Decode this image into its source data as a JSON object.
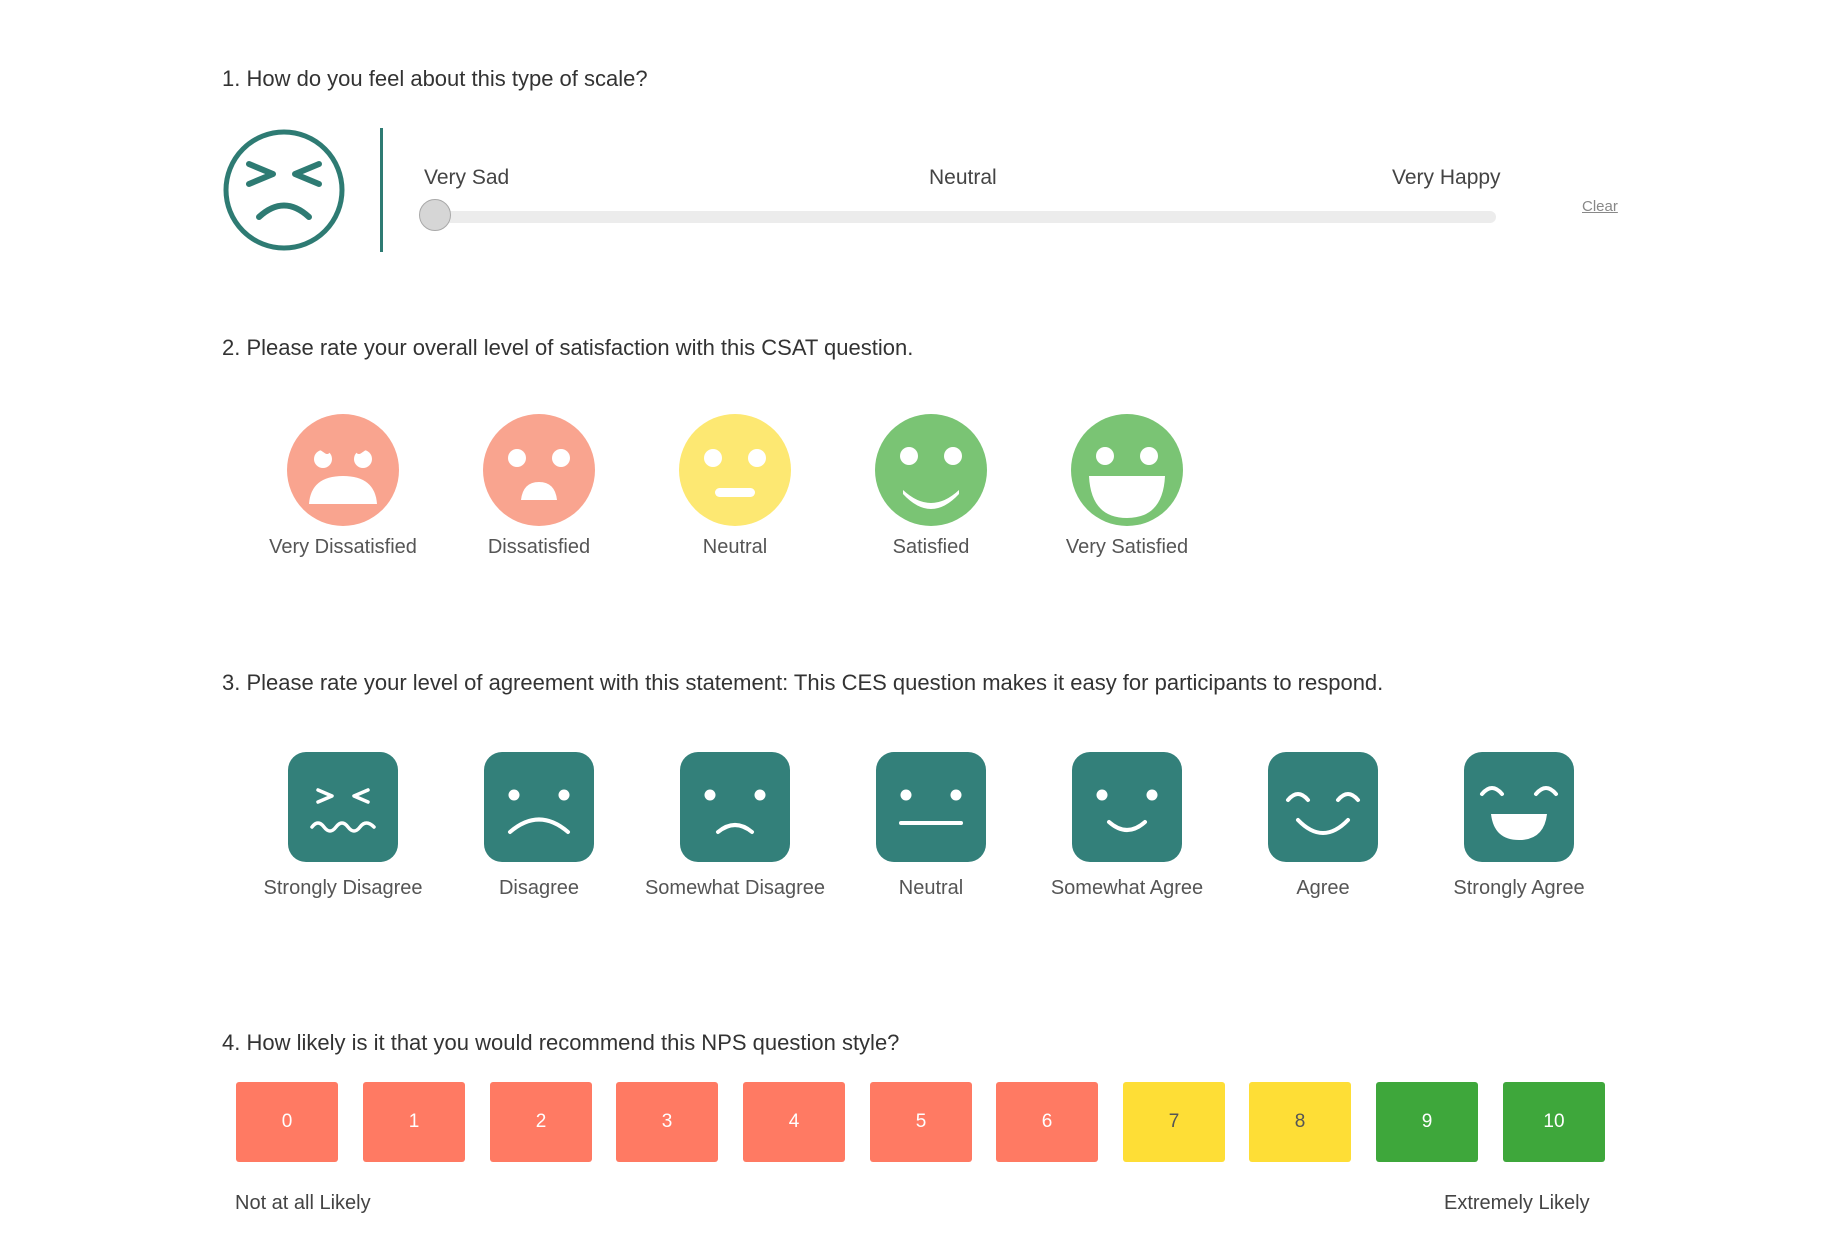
{
  "colors": {
    "teal": "#2e7b73",
    "teal_fill": "#33807a",
    "salmon_face": "#f9a48f",
    "yellow_face": "#fde872",
    "green_face": "#7ac474",
    "nps_red": "#ff7a63",
    "nps_yellow": "#fede36",
    "nps_green": "#3ea73b"
  },
  "q1": {
    "title": "1. How do you feel about this type of scale?",
    "face_icon": "scrunched-face-outline-icon",
    "labels": {
      "left": "Very Sad",
      "middle": "Neutral",
      "right": "Very Happy"
    },
    "slider_value": 0,
    "clear": "Clear"
  },
  "q2": {
    "title": "2. Please rate your overall level of satisfaction with this CSAT question.",
    "options": [
      {
        "label": "Very Dissatisfied",
        "icon": "angry-face-icon"
      },
      {
        "label": "Dissatisfied",
        "icon": "sad-face-icon"
      },
      {
        "label": "Neutral",
        "icon": "neutral-face-icon"
      },
      {
        "label": "Satisfied",
        "icon": "smile-face-icon"
      },
      {
        "label": "Very Satisfied",
        "icon": "grin-face-icon"
      }
    ]
  },
  "q3": {
    "title": "3. Please rate your level of agreement with this statement: This CES question makes it easy for participants to respond.",
    "options": [
      {
        "label": "Strongly Disagree",
        "icon": "scrunched-face-icon"
      },
      {
        "label": "Disagree",
        "icon": "frown-face-icon"
      },
      {
        "label": "Somewhat Disagree",
        "icon": "slight-frown-face-icon"
      },
      {
        "label": "Neutral",
        "icon": "neutral-face-icon"
      },
      {
        "label": "Somewhat Agree",
        "icon": "slight-smile-face-icon"
      },
      {
        "label": "Agree",
        "icon": "happy-closed-eyes-face-icon"
      },
      {
        "label": "Strongly Agree",
        "icon": "laughing-face-icon"
      }
    ]
  },
  "q4": {
    "title": "4. How likely is it that you would recommend this NPS question style?",
    "scale": [
      "0",
      "1",
      "2",
      "3",
      "4",
      "5",
      "6",
      "7",
      "8",
      "9",
      "10"
    ],
    "low_label": "Not at all Likely",
    "high_label": "Extremely Likely"
  }
}
